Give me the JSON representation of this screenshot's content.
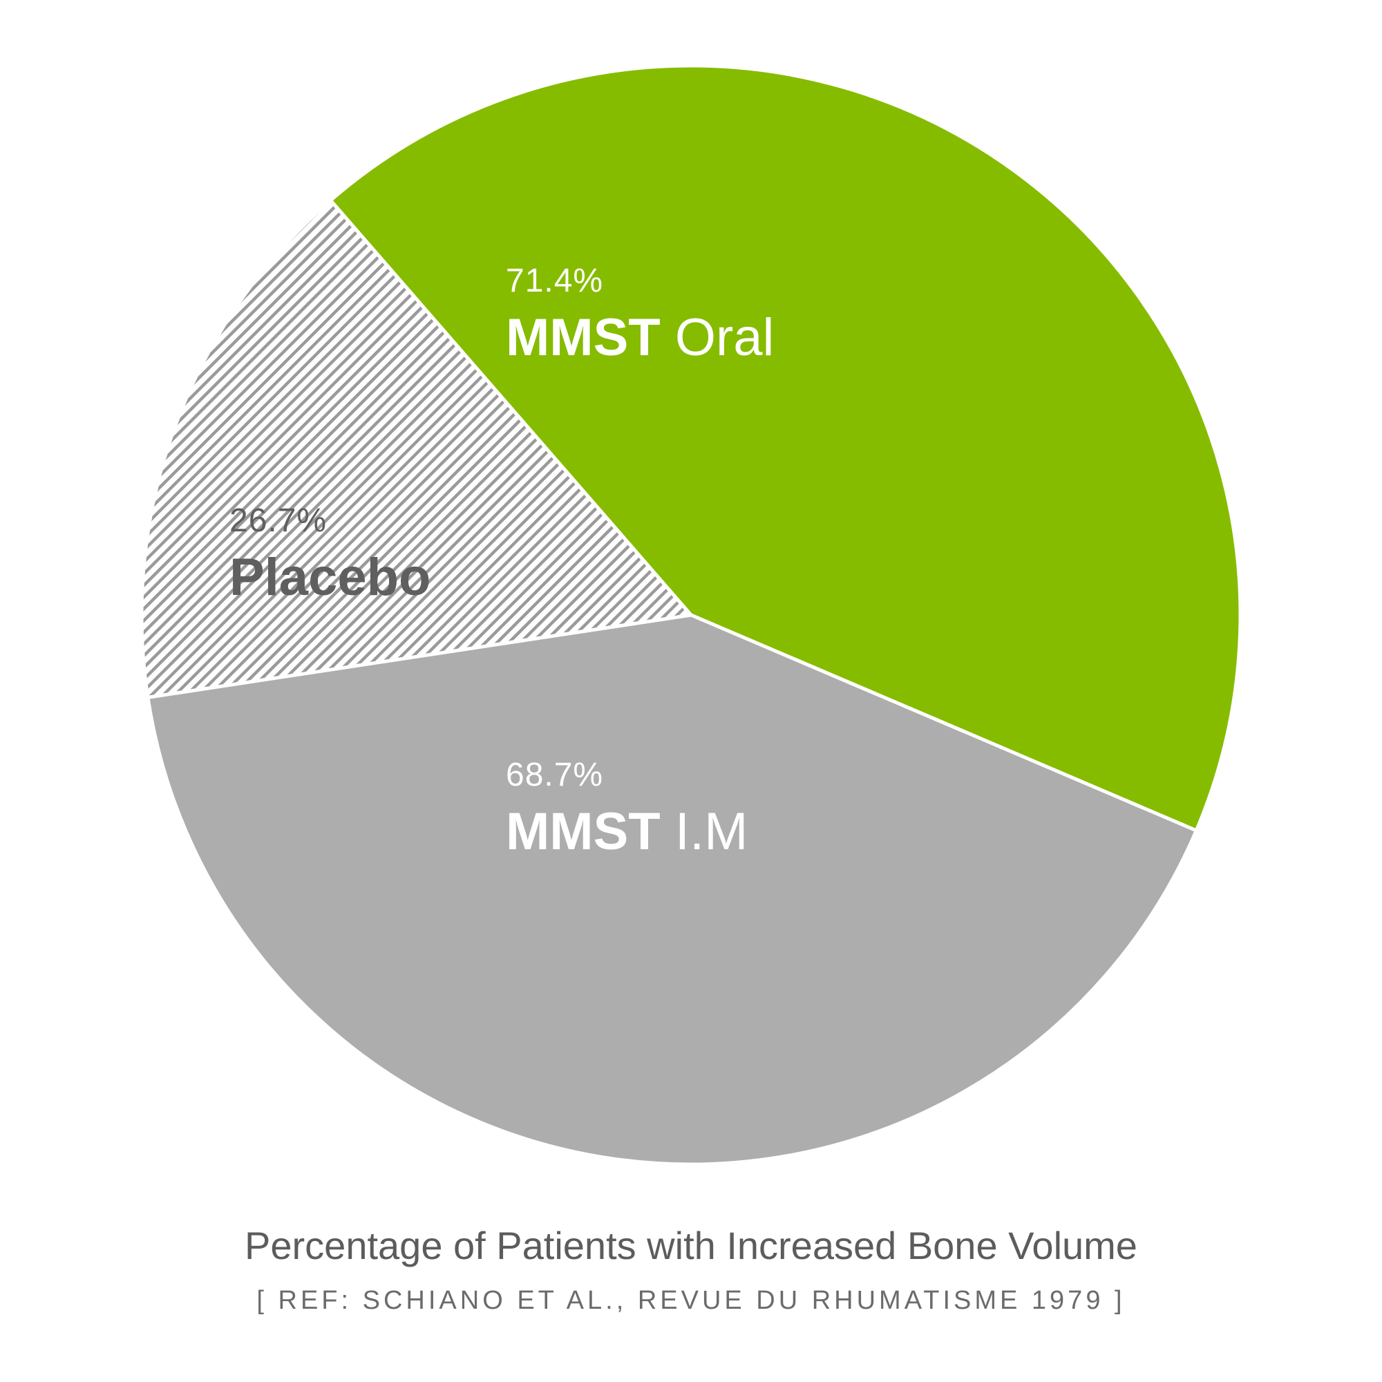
{
  "chart_data": {
    "type": "pie",
    "title": "Percentage of Patients with Increased Bone Volume",
    "subtitle": "[ REF: SCHIANO ET AL., REVUE DU RHUMATISME 1979 ]",
    "slices": [
      {
        "id": "oral",
        "name_bold": "MMST",
        "name_light": "Oral",
        "label": "71.4%",
        "value": 71.4,
        "color": "#86bc00",
        "pattern": "solid"
      },
      {
        "id": "im",
        "name_bold": "MMST",
        "name_light": "I.M",
        "label": "68.7%",
        "value": 68.7,
        "color": "#aeadad",
        "pattern": "solid"
      },
      {
        "id": "placebo",
        "name_bold": "Placebo",
        "name_light": "",
        "label": "26.7%",
        "value": 26.7,
        "color": "#9a9a9a",
        "pattern": "diagonal-hatch"
      }
    ]
  }
}
